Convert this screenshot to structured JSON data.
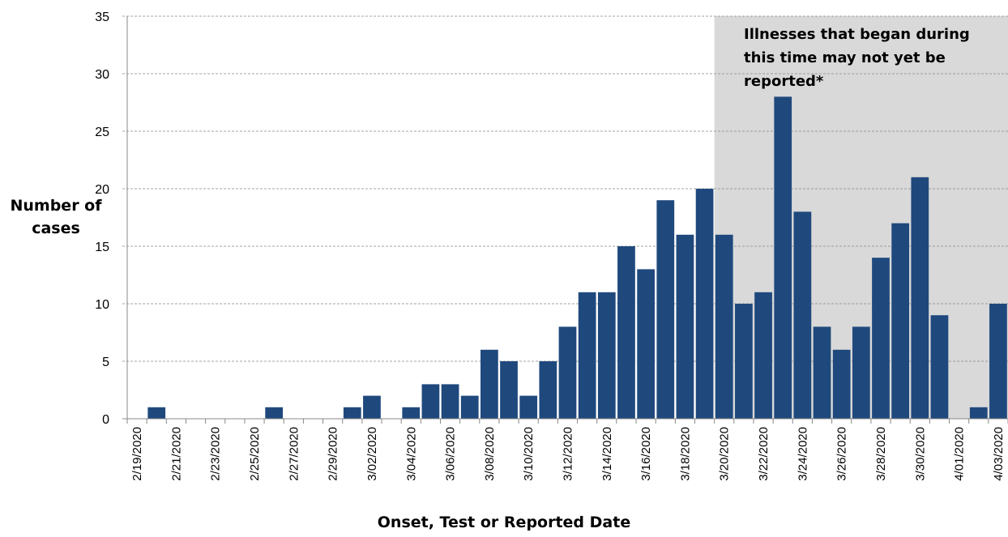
{
  "chart_data": {
    "type": "bar",
    "title": "",
    "xlabel": "Onset, Test or Reported Date",
    "ylabel": "Number of cases",
    "ylim": [
      0,
      35
    ],
    "yticks": [
      0,
      5,
      10,
      15,
      20,
      25,
      30,
      35
    ],
    "grid": true,
    "bar_color": "#1f497d",
    "shade_color": "#d9d9d9",
    "shaded_region": {
      "from": "3/20/2020",
      "to": "4/03/2020",
      "label": "Illnesses that began during this time may not yet be reported*"
    },
    "categories": [
      "2/19/2020",
      "2/20/2020",
      "2/21/2020",
      "2/22/2020",
      "2/23/2020",
      "2/24/2020",
      "2/25/2020",
      "2/26/2020",
      "2/27/2020",
      "2/28/2020",
      "2/29/2020",
      "3/01/2020",
      "3/02/2020",
      "3/03/2020",
      "3/04/2020",
      "3/05/2020",
      "3/06/2020",
      "3/07/2020",
      "3/08/2020",
      "3/09/2020",
      "3/10/2020",
      "3/11/2020",
      "3/12/2020",
      "3/13/2020",
      "3/14/2020",
      "3/15/2020",
      "3/16/2020",
      "3/17/2020",
      "3/18/2020",
      "3/19/2020",
      "3/20/2020",
      "3/21/2020",
      "3/22/2020",
      "3/23/2020",
      "3/24/2020",
      "3/25/2020",
      "3/26/2020",
      "3/27/2020",
      "3/28/2020",
      "3/29/2020",
      "3/30/2020",
      "3/31/2020",
      "4/01/2020",
      "4/02/2020",
      "4/03/2020"
    ],
    "values": [
      0,
      1,
      0,
      0,
      0,
      0,
      0,
      1,
      0,
      0,
      0,
      1,
      2,
      0,
      1,
      3,
      3,
      2,
      6,
      5,
      2,
      5,
      8,
      11,
      11,
      15,
      13,
      19,
      16,
      20,
      16,
      10,
      11,
      28,
      18,
      8,
      6,
      8,
      14,
      17,
      21,
      9,
      0,
      1,
      10
    ],
    "xtick_labels": [
      "2/19/2020",
      "2/21/2020",
      "2/23/2020",
      "2/25/2020",
      "2/27/2020",
      "2/29/2020",
      "3/02/2020",
      "3/04/2020",
      "3/06/2020",
      "3/08/2020",
      "3/10/2020",
      "3/12/2020",
      "3/14/2020",
      "3/16/2020",
      "3/18/2020",
      "3/20/2020",
      "3/22/2020",
      "3/24/2020",
      "3/26/2020",
      "3/28/2020",
      "3/30/2020",
      "4/01/2020",
      "4/03/2020"
    ]
  }
}
